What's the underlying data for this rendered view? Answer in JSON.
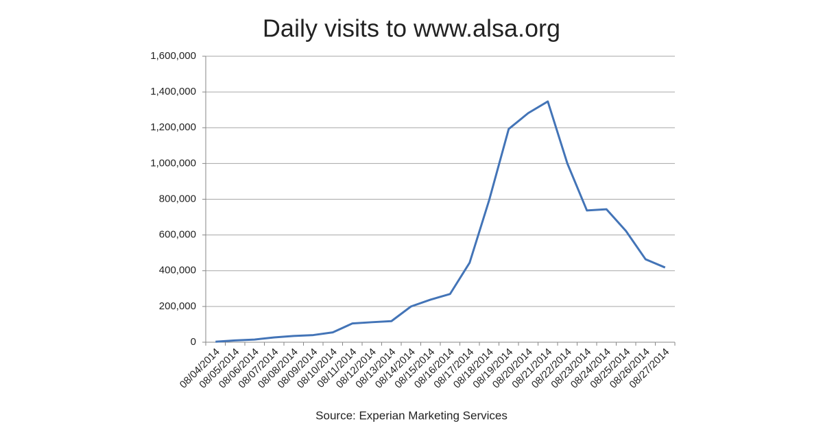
{
  "chart_data": {
    "type": "line",
    "title": "Daily visits to www.alsa.org",
    "source": "Source: Experian Marketing Services",
    "categories": [
      "08/04/2014",
      "08/05/2014",
      "08/06/2014",
      "08/07/2014",
      "08/08/2014",
      "08/09/2014",
      "08/10/2014",
      "08/11/2014",
      "08/12/2014",
      "08/13/2014",
      "08/14/2014",
      "08/15/2014",
      "08/16/2014",
      "08/17/2014",
      "08/18/2014",
      "08/19/2014",
      "08/20/2014",
      "08/21/2014",
      "08/22/2014",
      "08/23/2014",
      "08/24/2014",
      "08/25/2014",
      "08/26/2014",
      "08/27/2014"
    ],
    "values": [
      3000,
      10000,
      15000,
      27000,
      35000,
      40000,
      55000,
      105000,
      112000,
      118000,
      200000,
      238000,
      270000,
      445000,
      795000,
      1193000,
      1282000,
      1347000,
      1000000,
      737000,
      744000,
      622000,
      464000,
      418000
    ],
    "color": "#4374b7",
    "ylim": [
      0,
      1600000
    ],
    "yticks": [
      0,
      {
        "value": 200000,
        "label": "200,000"
      },
      {
        "value": 400000,
        "label": "400,000"
      },
      {
        "value": 600000,
        "label": "600,000"
      },
      {
        "value": 800000,
        "label": "800,000"
      },
      {
        "value": 1000000,
        "label": "1,000,000"
      },
      {
        "value": 1200000,
        "label": "1,200,000"
      },
      {
        "value": 1400000,
        "label": "1,400,000"
      },
      {
        "value": 1600000,
        "label": "1,600,000"
      }
    ],
    "grid": true
  }
}
